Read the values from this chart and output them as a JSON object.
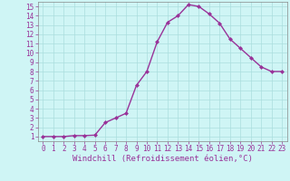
{
  "x": [
    0,
    1,
    2,
    3,
    4,
    5,
    6,
    7,
    8,
    9,
    10,
    11,
    12,
    13,
    14,
    15,
    16,
    17,
    18,
    19,
    20,
    21,
    22,
    23
  ],
  "y": [
    1.0,
    1.0,
    1.0,
    1.1,
    1.1,
    1.15,
    2.5,
    3.0,
    3.5,
    6.5,
    8.0,
    11.2,
    13.3,
    14.0,
    15.2,
    15.0,
    14.2,
    13.2,
    11.5,
    10.5,
    9.5,
    8.5,
    8.0,
    8.0
  ],
  "line_color": "#993399",
  "marker": "D",
  "marker_size": 2,
  "bg_color": "#cff5f5",
  "grid_color": "#aadddd",
  "xlabel": "Windchill (Refroidissement éolien,°C)",
  "xlim": [
    -0.5,
    23.5
  ],
  "ylim": [
    0.5,
    15.5
  ],
  "xticks": [
    0,
    1,
    2,
    3,
    4,
    5,
    6,
    7,
    8,
    9,
    10,
    11,
    12,
    13,
    14,
    15,
    16,
    17,
    18,
    19,
    20,
    21,
    22,
    23
  ],
  "yticks": [
    1,
    2,
    3,
    4,
    5,
    6,
    7,
    8,
    9,
    10,
    11,
    12,
    13,
    14,
    15
  ],
  "xlabel_fontsize": 6.5,
  "tick_fontsize": 5.5,
  "line_width": 1.0
}
